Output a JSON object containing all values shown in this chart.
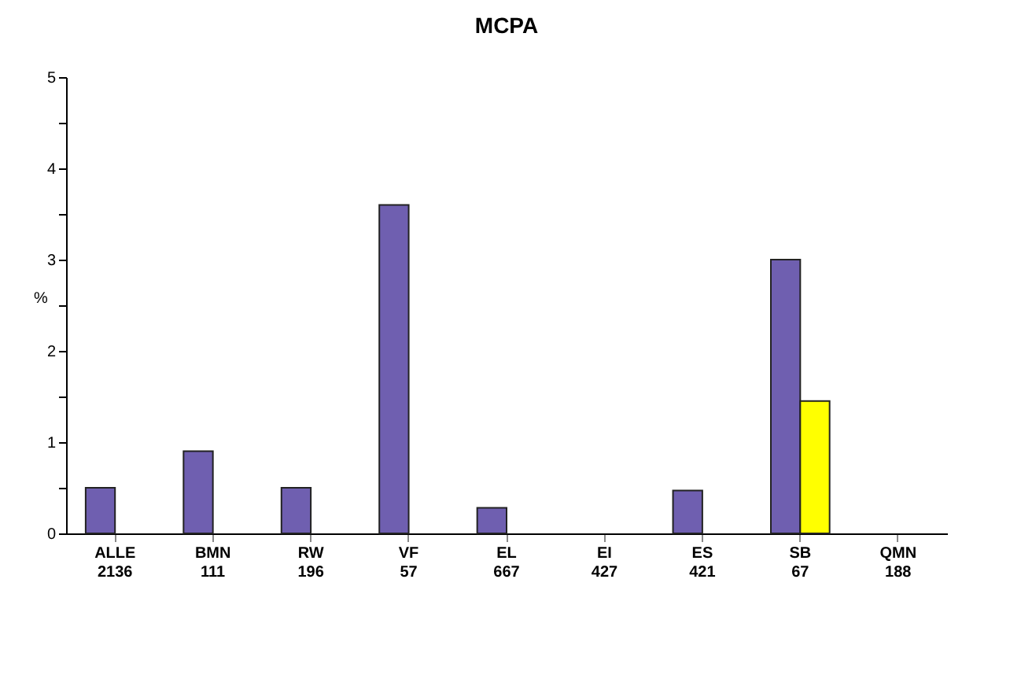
{
  "chart_data": {
    "type": "bar",
    "title": "MCPA",
    "ylabel": "%",
    "categories": [
      "ALLE\n2136",
      "BMN\n111",
      "RW\n196",
      "VF\n57",
      "EL\n667",
      "EI\n427",
      "ES\n421",
      "SB\n67",
      "QMN\n188"
    ],
    "series": [
      {
        "color": "#6f5fb0",
        "values": [
          0.5,
          0.9,
          0.5,
          3.6,
          0.28,
          0,
          0.47,
          3.0,
          0
        ]
      },
      {
        "color": "#ffff00",
        "values": [
          0,
          0,
          0,
          0,
          0,
          0,
          0,
          1.45,
          0
        ]
      }
    ],
    "ylim": [
      0,
      5
    ],
    "yticks": [
      0,
      {
        "value": 0.5,
        "label": null
      },
      1,
      {
        "value": 1.5,
        "label": null
      },
      2,
      {
        "value": 2.5,
        "label": null
      },
      3,
      {
        "value": 3.5,
        "label": null
      },
      4,
      {
        "value": 4.5,
        "label": null
      },
      5
    ],
    "grid": false,
    "legend": false
  }
}
